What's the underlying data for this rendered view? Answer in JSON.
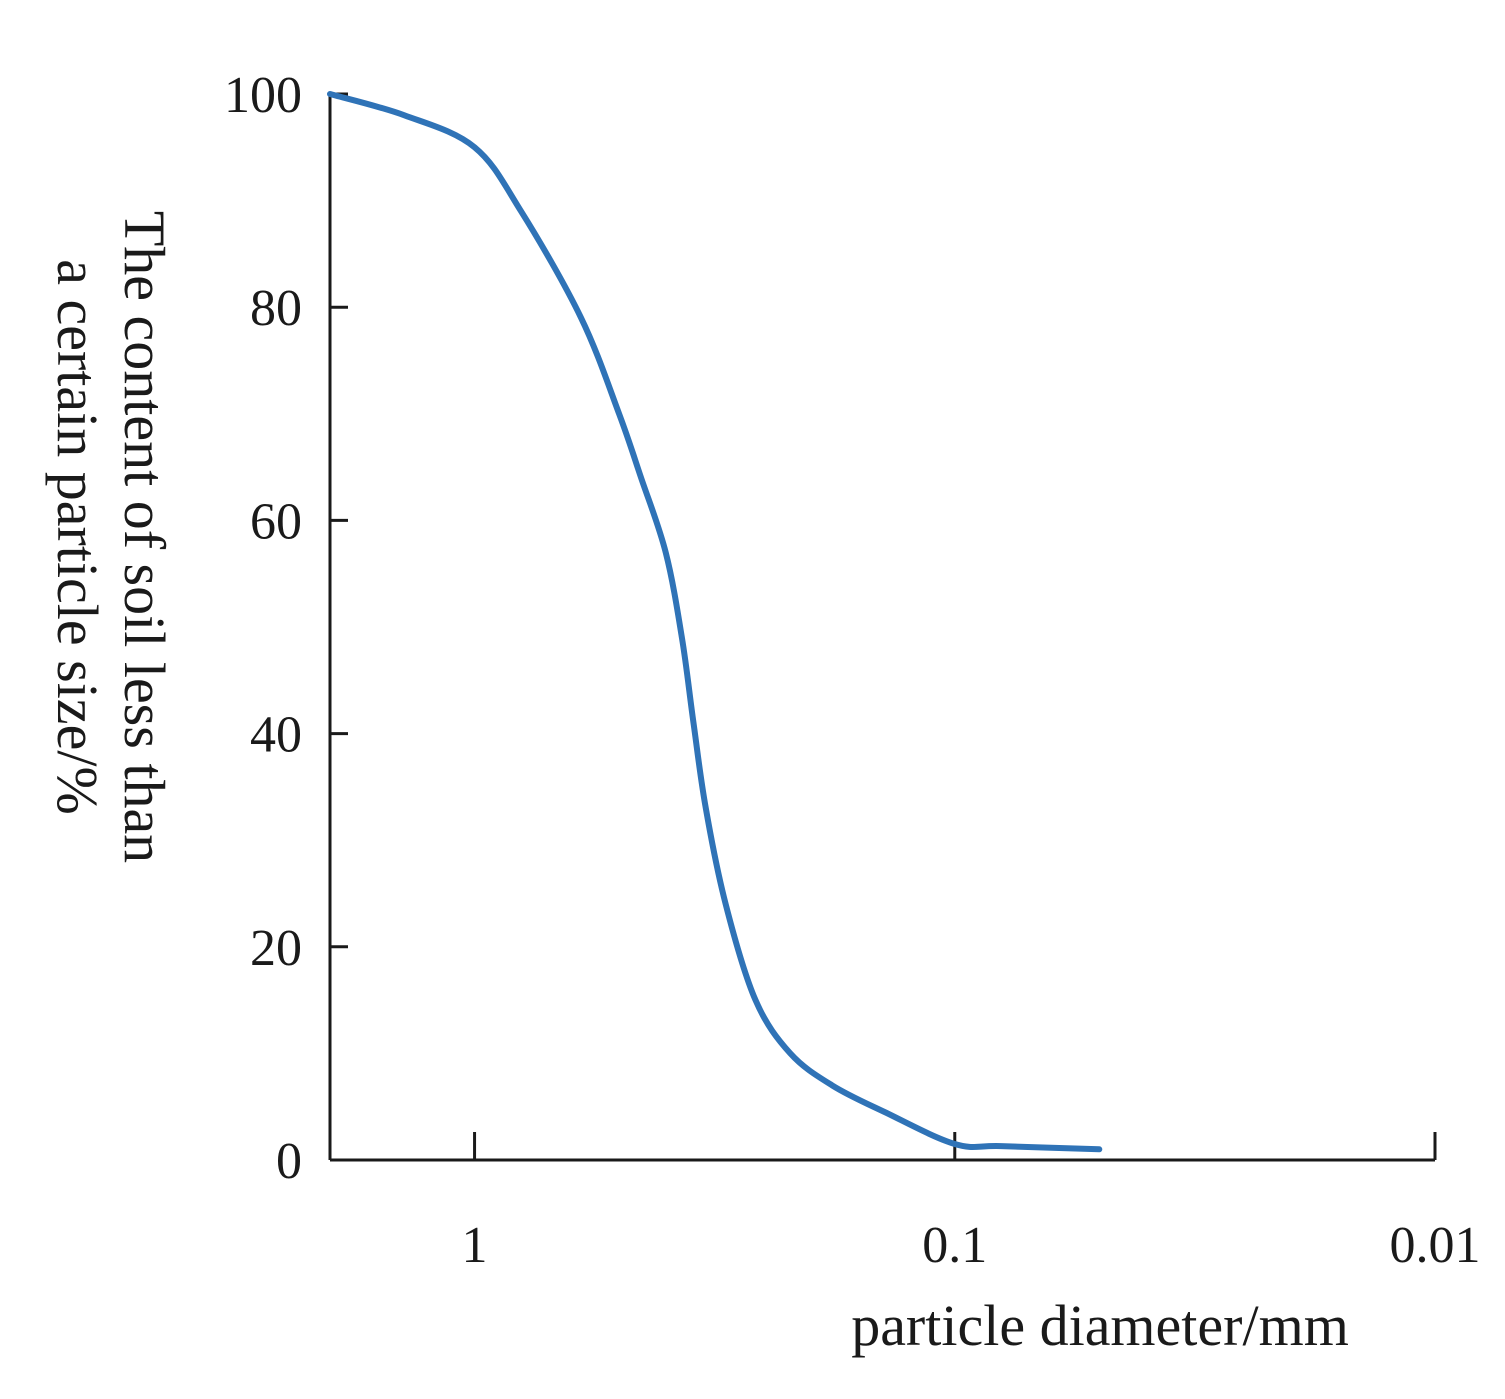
{
  "chart_data": {
    "type": "line",
    "title": "",
    "xlabel": "particle diameter/mm",
    "ylabel": "The content of soil less than a certain particle size/%",
    "ylabel_lines": [
      "The content of soil less than",
      "a certain particle size/%"
    ],
    "x_scale": "log",
    "x_reversed": true,
    "xlim": [
      2,
      0.01
    ],
    "ylim": [
      0,
      100
    ],
    "x_ticks": [
      {
        "value": 1,
        "label": "1"
      },
      {
        "value": 0.1,
        "label": "0.1"
      },
      {
        "value": 0.01,
        "label": "0.01"
      }
    ],
    "y_ticks": [
      {
        "value": 0,
        "label": "0"
      },
      {
        "value": 20,
        "label": "20"
      },
      {
        "value": 40,
        "label": "40"
      },
      {
        "value": 60,
        "label": "60"
      },
      {
        "value": 80,
        "label": "80"
      },
      {
        "value": 100,
        "label": "100"
      }
    ],
    "grid": false,
    "legend": "none",
    "series": [
      {
        "color": "#2f73b7",
        "x": [
          2,
          1.4,
          1.0,
          0.8,
          0.6,
          0.5,
          0.45,
          0.4,
          0.37,
          0.35,
          0.33,
          0.3,
          0.26,
          0.22,
          0.18,
          0.14,
          0.1,
          0.08,
          0.05
        ],
        "y": [
          100,
          98,
          95,
          89,
          79,
          70,
          64,
          57,
          49,
          41,
          33,
          24,
          15,
          10,
          7,
          4.5,
          1.5,
          1.3,
          1
        ]
      }
    ]
  }
}
